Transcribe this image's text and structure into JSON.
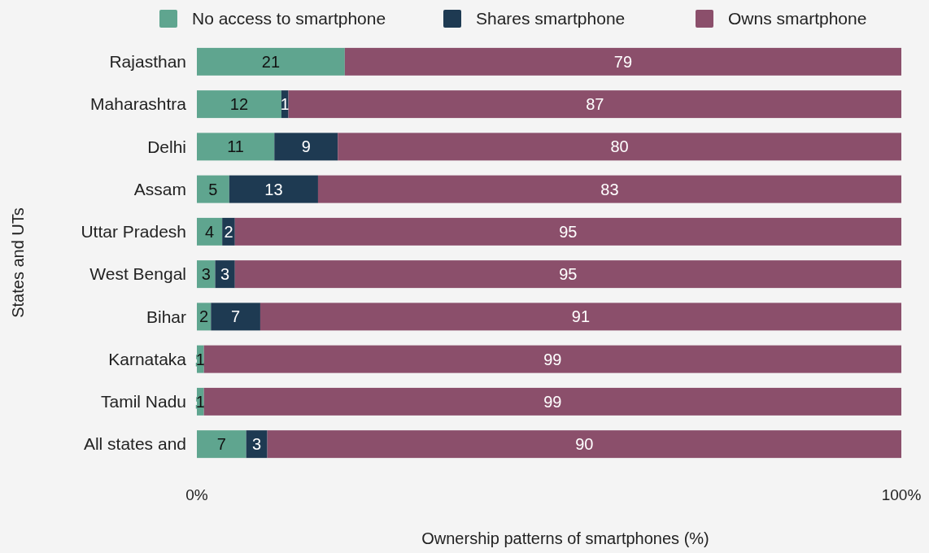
{
  "chart_data": {
    "type": "bar",
    "orientation": "horizontal",
    "stacked": true,
    "xlabel": "Ownership patterns of smartphones (%)",
    "ylabel": "States and UTs",
    "categories": [
      "Rajasthan",
      "Maharashtra",
      "Delhi",
      "Assam",
      "Uttar Pradesh",
      "West Bengal",
      "Bihar",
      "Karnataka",
      "Tamil Nadu",
      "All states and"
    ],
    "series": [
      {
        "name": "No access to smartphone",
        "color": "#5fa58f",
        "values": [
          21,
          12,
          11,
          4.6,
          3.6,
          2.6,
          2,
          1,
          1,
          7
        ],
        "value_labels": [
          "21",
          "12",
          "11",
          "5",
          "4",
          "3",
          "2",
          "1",
          "1",
          "7"
        ]
      },
      {
        "name": "Shares smartphone",
        "color": "#1e3a52",
        "values": [
          0,
          1,
          9,
          12.6,
          1.8,
          2.8,
          7,
          0,
          0,
          3
        ],
        "value_labels": [
          null,
          "1",
          "9",
          "13",
          "2",
          "3",
          "7",
          null,
          null,
          "3"
        ]
      },
      {
        "name": "Owns smartphone",
        "color": "#8b4f6b",
        "values": [
          79,
          87,
          80,
          82.8,
          94.6,
          94.6,
          91,
          99,
          99,
          90
        ],
        "value_labels": [
          "79",
          "87",
          "80",
          "83",
          "95",
          "95",
          "91",
          "99",
          "99",
          "90"
        ]
      }
    ],
    "xlim": [
      0,
      100
    ],
    "xticks": [
      {
        "value": 0,
        "label": "0%"
      },
      {
        "value": 100,
        "label": "100%"
      }
    ],
    "legend": "top"
  }
}
